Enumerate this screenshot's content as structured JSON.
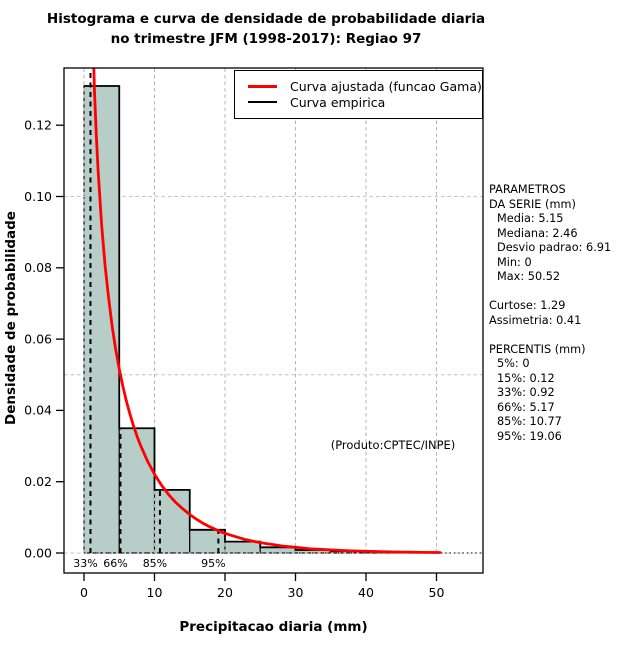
{
  "title": {
    "line1": "Histograma e curva de densidade de probabilidade diaria",
    "line2": "no trimestre JFM (1998-2017): Regiao 97"
  },
  "chart_data": {
    "type": "bar",
    "subtype": "histogram-with-density-curves",
    "title": "Histograma e curva de densidade de probabilidade diaria no trimestre JFM (1998-2017): Regiao 97",
    "xlabel": "Precipitacao diaria (mm)",
    "ylabel": "Densidade de probabilidade",
    "xlim": [
      0,
      56.5
    ],
    "ylim": [
      -0.0056,
      0.1361
    ],
    "x_ticks": [
      0,
      10,
      20,
      30,
      40,
      50
    ],
    "y_ticks": [
      {
        "v": 0.0,
        "label": "0.00"
      },
      {
        "v": 0.02,
        "label": "0.02"
      },
      {
        "v": 0.04,
        "label": "0.04"
      },
      {
        "v": 0.06,
        "label": "0.06"
      },
      {
        "v": 0.08,
        "label": "0.08"
      },
      {
        "v": 0.1,
        "label": "0.10"
      },
      {
        "v": 0.12,
        "label": "0.12"
      }
    ],
    "grid": true,
    "grid_x": [
      0,
      10,
      20,
      30,
      40,
      50
    ],
    "grid_y": [
      0,
      0.05,
      0.1
    ],
    "zero_line": true,
    "histogram": {
      "bin_width": 5,
      "breaks": [
        0,
        5,
        10,
        15,
        20,
        25,
        30,
        35,
        40,
        45
      ],
      "densities": [
        0.131,
        0.035,
        0.0177,
        0.0065,
        0.0032,
        0.0016,
        0.00085,
        0.0005,
        0.0002
      ],
      "fill": "#b6cdc8",
      "border": "#000000"
    },
    "gamma_curve": {
      "name": "Curva ajustada (funcao Gama)",
      "color": "#ff0000",
      "points": [
        [
          0.8,
          0.182
        ],
        [
          1.0,
          0.1626
        ],
        [
          1.25,
          0.1455
        ],
        [
          1.5,
          0.1287
        ],
        [
          1.75,
          0.117
        ],
        [
          2,
          0.1073
        ],
        [
          2.5,
          0.092
        ],
        [
          3,
          0.0804
        ],
        [
          3.5,
          0.0714
        ],
        [
          4,
          0.0635
        ],
        [
          4.5,
          0.057
        ],
        [
          5,
          0.0516
        ],
        [
          5.5,
          0.0469
        ],
        [
          6,
          0.0427
        ],
        [
          6.5,
          0.0391
        ],
        [
          7,
          0.0358
        ],
        [
          7.5,
          0.0329
        ],
        [
          8,
          0.0303
        ],
        [
          9,
          0.0258
        ],
        [
          10,
          0.0221
        ],
        [
          11,
          0.019
        ],
        [
          12,
          0.0164
        ],
        [
          13,
          0.0142
        ],
        [
          14,
          0.0124
        ],
        [
          15,
          0.0108
        ],
        [
          16,
          0.0094
        ],
        [
          17,
          0.0082
        ],
        [
          18,
          0.0072
        ],
        [
          19,
          0.0063
        ],
        [
          20,
          0.0055
        ],
        [
          21,
          0.0049
        ],
        [
          22,
          0.0043
        ],
        [
          23,
          0.0037
        ],
        [
          24,
          0.0033
        ],
        [
          25,
          0.0029
        ],
        [
          26,
          0.0026
        ],
        [
          27,
          0.0023
        ],
        [
          28,
          0.002
        ],
        [
          29,
          0.0018
        ],
        [
          30,
          0.0016
        ],
        [
          32,
          0.0012
        ],
        [
          34,
          0.00096
        ],
        [
          36,
          0.00076
        ],
        [
          38,
          0.0006
        ],
        [
          40,
          0.00047
        ],
        [
          42,
          0.00037
        ],
        [
          44,
          0.00029
        ],
        [
          46,
          0.00023
        ],
        [
          48,
          0.00018
        ],
        [
          50,
          0.00014
        ],
        [
          50.5,
          0.00013
        ]
      ]
    },
    "empirical_curve": {
      "name": "Curva empirica",
      "color": "#000000"
    },
    "percentile_lines": [
      {
        "label": "33%",
        "x": 0.92,
        "top": 0.1361
      },
      {
        "label": "66%",
        "x": 5.17,
        "top": 0.035
      },
      {
        "label": "85%",
        "x": 10.77,
        "top": 0.0177
      },
      {
        "label": "95%",
        "x": 19.06,
        "top": 0.0065
      }
    ],
    "legend": {
      "position": "top-right",
      "entries": [
        {
          "label": "Curva ajustada (funcao Gama)",
          "color": "#ff0000"
        },
        {
          "label": "Curva empirica",
          "color": "#000000"
        }
      ]
    },
    "annotation": {
      "text": "(Produto:CPTEC/INPE)",
      "x": 43.8,
      "y": 0.0303
    }
  },
  "side_panel": {
    "lines": [
      {
        "text": "PARAMETROS",
        "indent": 0
      },
      {
        "text": "DA SERIE (mm)",
        "indent": 0
      },
      {
        "text": "Media: 5.15",
        "indent": 1
      },
      {
        "text": "Mediana: 2.46",
        "indent": 1
      },
      {
        "text": "Desvio padrao: 6.91",
        "indent": 1
      },
      {
        "text": "Min: 0",
        "indent": 1
      },
      {
        "text": "Max: 50.52",
        "indent": 1
      },
      {
        "text": "",
        "indent": 0
      },
      {
        "text": "Curtose: 1.29",
        "indent": 0
      },
      {
        "text": "Assimetria: 0.41",
        "indent": 0
      },
      {
        "text": "",
        "indent": 0
      },
      {
        "text": "PERCENTIS (mm)",
        "indent": 0
      },
      {
        "text": "5%: 0",
        "indent": 1
      },
      {
        "text": "15%: 0.12",
        "indent": 1
      },
      {
        "text": "33%: 0.92",
        "indent": 1
      },
      {
        "text": "66%: 5.17",
        "indent": 1
      },
      {
        "text": "85%: 10.77",
        "indent": 1
      },
      {
        "text": "95%: 19.06",
        "indent": 1
      }
    ]
  }
}
